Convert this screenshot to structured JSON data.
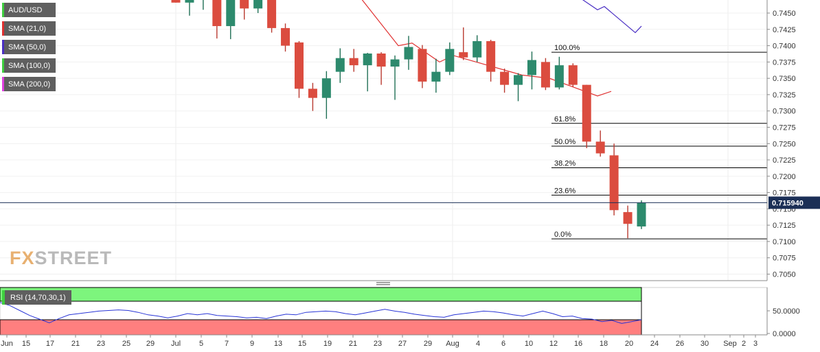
{
  "symbol": "AUD/USD",
  "legend": [
    {
      "label": "SMA (21,0)",
      "color": "#e03030"
    },
    {
      "label": "SMA (50,0)",
      "color": "#4a2fc4"
    },
    {
      "label": "SMA (100,0)",
      "color": "#3fcf3f"
    },
    {
      "label": "SMA (200,0)",
      "color": "#e040e0"
    }
  ],
  "logo": {
    "prefix": "FX",
    "suffix": "STREET"
  },
  "rsi": {
    "label": "RSI (14,70,30,1)",
    "levels": [
      "50.0000",
      "0.0000"
    ]
  },
  "chart_data": {
    "type": "candlestick",
    "price_axis": {
      "ylim": [
        0.704,
        0.747
      ],
      "ticks": [
        "0.7450",
        "0.7425",
        "0.7400",
        "0.7375",
        "0.7350",
        "0.7325",
        "0.7300",
        "0.7275",
        "0.7250",
        "0.7225",
        "0.7200",
        "0.7175",
        "0.7150",
        "0.7125",
        "0.7100",
        "0.7075",
        "0.7050"
      ]
    },
    "last_price": "0.715940",
    "x_labels": [
      "Jun",
      "15",
      "17",
      "21",
      "23",
      "25",
      "29",
      "Jul",
      "5",
      "7",
      "9",
      "13",
      "15",
      "19",
      "21",
      "23",
      "27",
      "29",
      "Aug",
      "4",
      "6",
      "10",
      "12",
      "16",
      "18",
      "20",
      "24",
      "26",
      "30",
      "Sep",
      "2",
      "3"
    ],
    "candles": [
      {
        "o": 0.7473,
        "h": 0.748,
        "l": 0.7466,
        "c": 0.7466
      },
      {
        "o": 0.7466,
        "h": 0.748,
        "l": 0.7446,
        "c": 0.7475
      },
      {
        "o": 0.747,
        "h": 0.748,
        "l": 0.7455,
        "c": 0.7477
      },
      {
        "o": 0.7477,
        "h": 0.748,
        "l": 0.7411,
        "c": 0.743
      },
      {
        "o": 0.743,
        "h": 0.748,
        "l": 0.741,
        "c": 0.748
      },
      {
        "o": 0.748,
        "h": 0.748,
        "l": 0.744,
        "c": 0.7457
      },
      {
        "o": 0.7457,
        "h": 0.748,
        "l": 0.745,
        "c": 0.748
      },
      {
        "o": 0.748,
        "h": 0.748,
        "l": 0.742,
        "c": 0.7427
      },
      {
        "o": 0.7427,
        "h": 0.7434,
        "l": 0.7391,
        "c": 0.74
      },
      {
        "o": 0.7405,
        "h": 0.7407,
        "l": 0.732,
        "c": 0.7334
      },
      {
        "o": 0.7334,
        "h": 0.7343,
        "l": 0.73,
        "c": 0.732
      },
      {
        "o": 0.732,
        "h": 0.7361,
        "l": 0.7288,
        "c": 0.735
      },
      {
        "o": 0.736,
        "h": 0.7396,
        "l": 0.7343,
        "c": 0.7381
      },
      {
        "o": 0.7381,
        "h": 0.7395,
        "l": 0.736,
        "c": 0.737
      },
      {
        "o": 0.737,
        "h": 0.7389,
        "l": 0.733,
        "c": 0.7388
      },
      {
        "o": 0.7388,
        "h": 0.739,
        "l": 0.734,
        "c": 0.7368
      },
      {
        "o": 0.7368,
        "h": 0.7385,
        "l": 0.7317,
        "c": 0.7379
      },
      {
        "o": 0.7379,
        "h": 0.7415,
        "l": 0.7363,
        "c": 0.7398
      },
      {
        "o": 0.7395,
        "h": 0.7401,
        "l": 0.7335,
        "c": 0.7345
      },
      {
        "o": 0.7345,
        "h": 0.738,
        "l": 0.7328,
        "c": 0.736
      },
      {
        "o": 0.736,
        "h": 0.7405,
        "l": 0.7355,
        "c": 0.7395
      },
      {
        "o": 0.739,
        "h": 0.7428,
        "l": 0.7378,
        "c": 0.7382
      },
      {
        "o": 0.7382,
        "h": 0.7416,
        "l": 0.7375,
        "c": 0.7407
      },
      {
        "o": 0.7407,
        "h": 0.7409,
        "l": 0.7345,
        "c": 0.736
      },
      {
        "o": 0.736,
        "h": 0.7365,
        "l": 0.7328,
        "c": 0.734
      },
      {
        "o": 0.734,
        "h": 0.7358,
        "l": 0.7315,
        "c": 0.7355
      },
      {
        "o": 0.7355,
        "h": 0.7391,
        "l": 0.7333,
        "c": 0.7378
      },
      {
        "o": 0.7375,
        "h": 0.7381,
        "l": 0.7332,
        "c": 0.7336
      },
      {
        "o": 0.7336,
        "h": 0.7383,
        "l": 0.7333,
        "c": 0.737
      },
      {
        "o": 0.737,
        "h": 0.7373,
        "l": 0.7337,
        "c": 0.734
      },
      {
        "o": 0.734,
        "h": 0.734,
        "l": 0.7243,
        "c": 0.7253
      },
      {
        "o": 0.7253,
        "h": 0.727,
        "l": 0.723,
        "c": 0.7235
      },
      {
        "o": 0.7232,
        "h": 0.725,
        "l": 0.714,
        "c": 0.7148
      },
      {
        "o": 0.7145,
        "h": 0.7155,
        "l": 0.7105,
        "c": 0.7127
      },
      {
        "o": 0.7123,
        "h": 0.7163,
        "l": 0.7119,
        "c": 0.7159
      }
    ],
    "sma21": [
      [
        0.748,
        0.748
      ],
      [
        0.74,
        0.7404
      ],
      [
        0.7375,
        0.7385
      ],
      [
        0.7355,
        0.735
      ],
      [
        0.7323,
        0.733
      ]
    ],
    "sma50": [
      [
        0.748,
        0.748
      ],
      [
        0.7455,
        0.746
      ],
      [
        0.742,
        0.743
      ]
    ],
    "fibonacci": [
      {
        "label": "100.0%",
        "value": 0.739
      },
      {
        "label": "61.8%",
        "value": 0.7281
      },
      {
        "label": "50.0%",
        "value": 0.7246
      },
      {
        "label": "38.2%",
        "value": 0.7213
      },
      {
        "label": "23.6%",
        "value": 0.7171
      },
      {
        "label": "0.0%",
        "value": 0.7104
      }
    ],
    "rsi_values": [
      58,
      53,
      45,
      37,
      31,
      25,
      32,
      38,
      40,
      42,
      44,
      45,
      46,
      45,
      42,
      38,
      36,
      33,
      36,
      40,
      38,
      40,
      37,
      36,
      35,
      33,
      34,
      32,
      36,
      39,
      38,
      42,
      43,
      44,
      43,
      40,
      38,
      41,
      44,
      47,
      44,
      42,
      39,
      37,
      35,
      34,
      38,
      40,
      42,
      44,
      43,
      41,
      38,
      36,
      40,
      44,
      40,
      35,
      36,
      32,
      31,
      27,
      29,
      24,
      27,
      30
    ]
  }
}
